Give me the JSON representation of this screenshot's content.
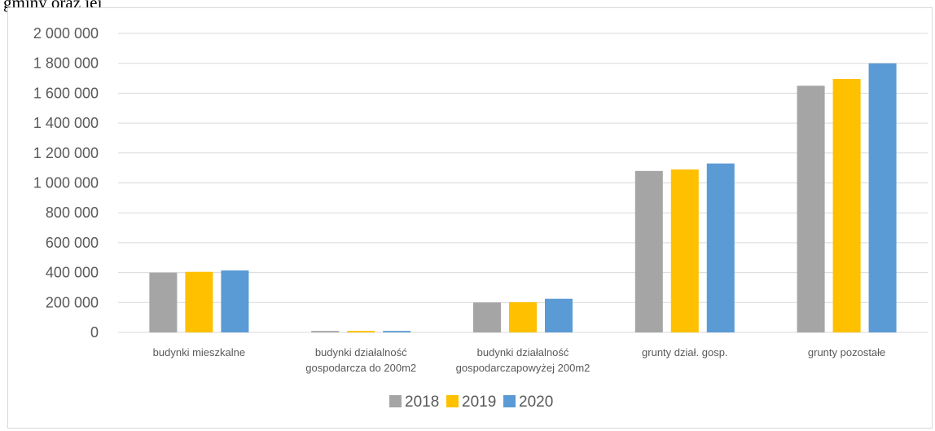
{
  "header_text": "gminy oraz jej",
  "colors": {
    "series": [
      "#a5a5a5",
      "#ffc000",
      "#5b9bd5"
    ],
    "gridline": "#d9d9d9",
    "axis_text": "#595959"
  },
  "chart_data": {
    "type": "bar",
    "title": "",
    "xlabel": "",
    "ylabel": "",
    "ylim": [
      0,
      2000000
    ],
    "y_ticks": [
      "0",
      "200 000",
      "400 000",
      "600 000",
      "800 000",
      "1 000 000",
      "1 200 000",
      "1 400 000",
      "1 600 000",
      "1 800 000",
      "2 000 000"
    ],
    "grid": true,
    "legend_position": "bottom",
    "categories": [
      [
        "budynki mieszkalne"
      ],
      [
        "budynki działalność",
        "gospodarcza do 200m2"
      ],
      [
        "budynki działalność",
        "gospodarczapowyżej 200m2"
      ],
      [
        "grunty dział. gosp."
      ],
      [
        "grunty pozostałe"
      ]
    ],
    "series": [
      {
        "name": "2018",
        "values": [
          400000,
          10000,
          200000,
          1080000,
          1650000
        ]
      },
      {
        "name": "2019",
        "values": [
          405000,
          10000,
          202000,
          1090000,
          1695000
        ]
      },
      {
        "name": "2020",
        "values": [
          415000,
          10000,
          225000,
          1130000,
          1800000
        ]
      }
    ]
  }
}
